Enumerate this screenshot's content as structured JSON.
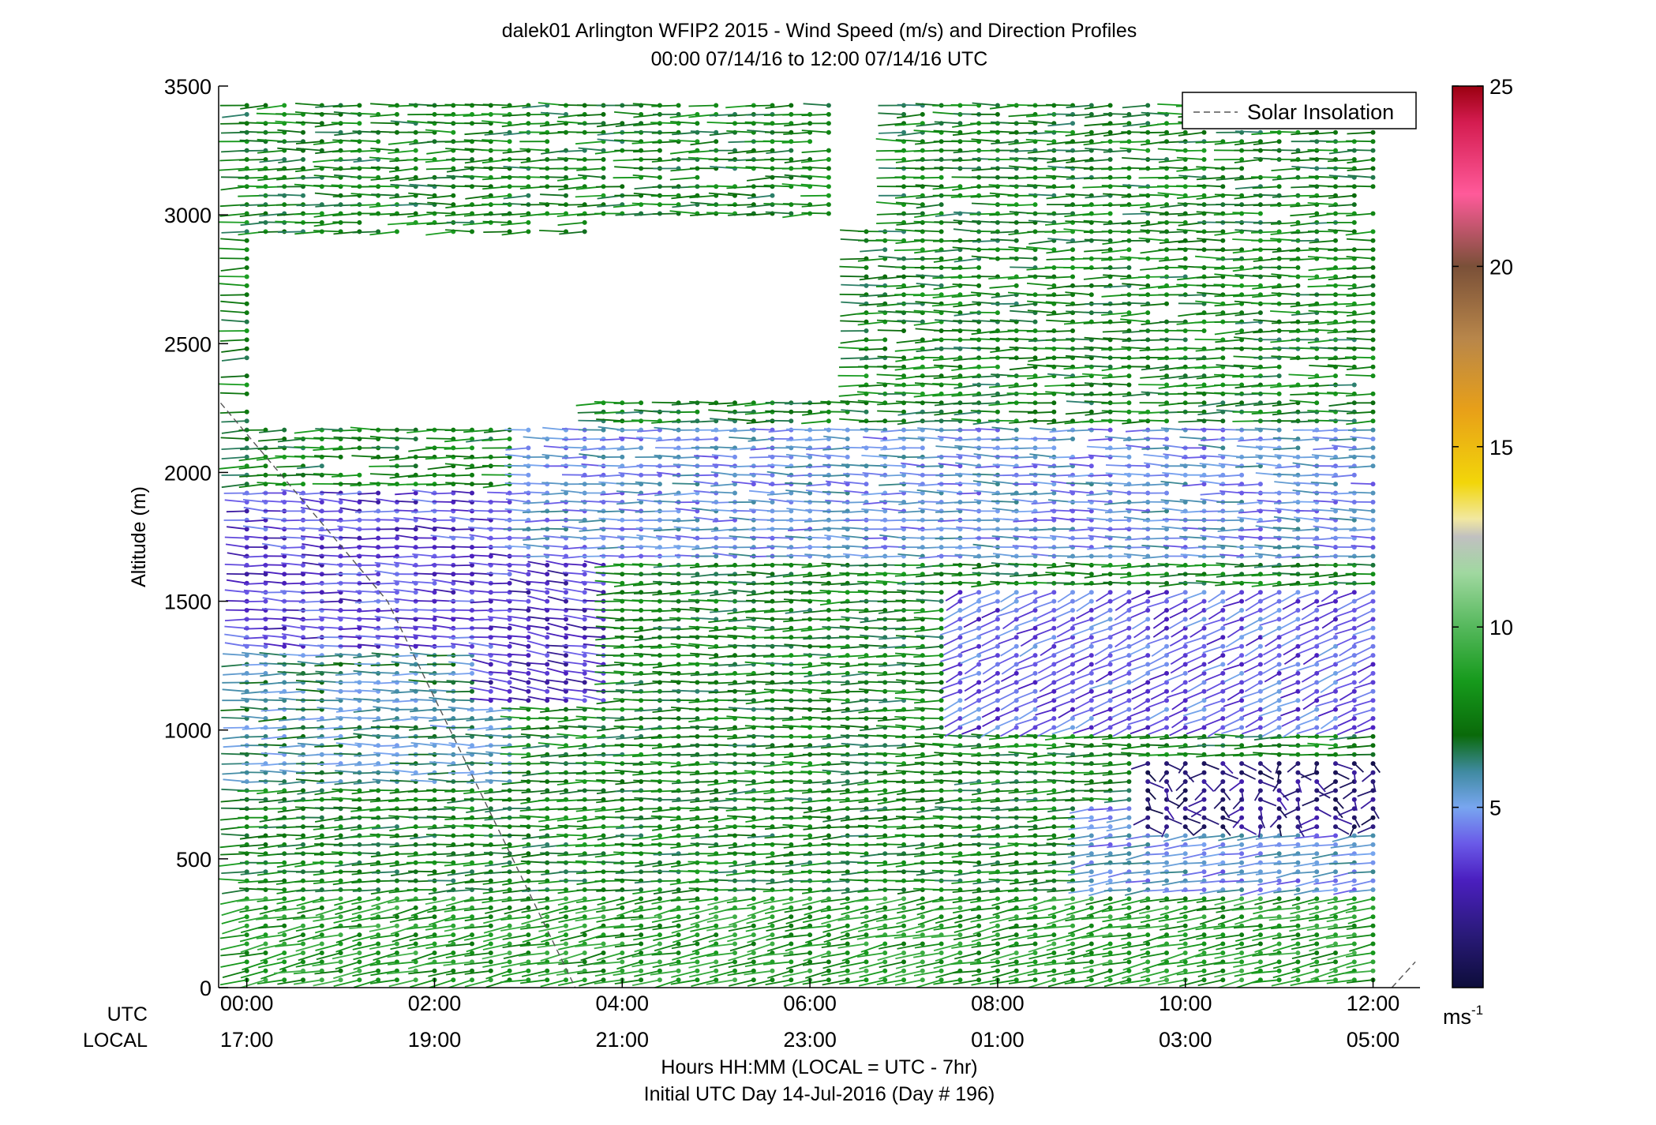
{
  "chart_data": {
    "type": "wind-profile",
    "title": "dalek01 Arlington WFIP2 2015 - Wind Speed (m/s) and Direction Profiles",
    "subtitle": "00:00 07/14/16 to 12:00 07/14/16  UTC",
    "ylabel": "Altitude (m)",
    "xlabel_line1": "Hours HH:MM  (LOCAL = UTC - 7hr)",
    "xlabel_line2": "Initial UTC Day 14-Jul-2016 (Day # 196)",
    "ylim": [
      0,
      3500
    ],
    "xlim_hours": [
      -0.3,
      12.5
    ],
    "y_ticks": [
      "0",
      "500",
      "1000",
      "1500",
      "2000",
      "2500",
      "3000",
      "3500"
    ],
    "x_row_labels": {
      "utc": "UTC",
      "local": "LOCAL"
    },
    "utc_ticks": [
      "00:00",
      "02:00",
      "04:00",
      "06:00",
      "08:00",
      "10:00",
      "12:00"
    ],
    "local_ticks": [
      "17:00",
      "19:00",
      "21:00",
      "23:00",
      "01:00",
      "03:00",
      "05:00"
    ],
    "legend": [
      {
        "label": "Solar Insolation",
        "style": "dashed"
      }
    ],
    "colorbar": {
      "range": [
        0,
        25
      ],
      "ticks": [
        "5",
        "10",
        "15",
        "20",
        "25"
      ],
      "unit": "ms",
      "unit_exp": "-1",
      "stops": [
        {
          "v": 0,
          "c": "#0d0d3a"
        },
        {
          "v": 1.5,
          "c": "#2a1a7a"
        },
        {
          "v": 3,
          "c": "#4b1fc0"
        },
        {
          "v": 4,
          "c": "#6a5ae8"
        },
        {
          "v": 5,
          "c": "#78a6f0"
        },
        {
          "v": 6,
          "c": "#3f8aa0"
        },
        {
          "v": 7,
          "c": "#0a6a0a"
        },
        {
          "v": 8.5,
          "c": "#169a1c"
        },
        {
          "v": 10,
          "c": "#55b85c"
        },
        {
          "v": 11.5,
          "c": "#a0d8a0"
        },
        {
          "v": 12.5,
          "c": "#c0c0c0"
        },
        {
          "v": 13,
          "c": "#f2e8a0"
        },
        {
          "v": 14,
          "c": "#f2d60a"
        },
        {
          "v": 16,
          "c": "#e8a018"
        },
        {
          "v": 18,
          "c": "#b8864a"
        },
        {
          "v": 20,
          "c": "#7a5038"
        },
        {
          "v": 22,
          "c": "#ff5a9a"
        },
        {
          "v": 24,
          "c": "#d41c50"
        },
        {
          "v": 25,
          "c": "#9a0010"
        }
      ]
    },
    "solar_insolation_curve": [
      [
        -0.35,
        2300
      ],
      [
        1.5,
        1500
      ],
      [
        3.5,
        0
      ]
    ],
    "solar_insolation_curve_2": [
      [
        12.2,
        0
      ],
      [
        12.45,
        100
      ]
    ],
    "profiles": {
      "t_start": 0,
      "t_end": 12,
      "t_step": 0.2,
      "z_start": 30,
      "z_step": 35,
      "z_end": 3450,
      "note": "Representative wind regimes (speed m/s, direction deg) by altitude band and time window; station samples every 12 minutes.",
      "regimes": [
        {
          "z": [
            0,
            350
          ],
          "t": [
            0,
            12
          ],
          "speed": 8.5,
          "dir": 250
        },
        {
          "z": [
            350,
            800
          ],
          "t": [
            0,
            9
          ],
          "speed": 7.5,
          "dir": 265
        },
        {
          "z": [
            350,
            700
          ],
          "t": [
            9,
            12
          ],
          "speed": 5,
          "dir": 255
        },
        {
          "z": [
            600,
            870
          ],
          "t": [
            9.5,
            12
          ],
          "speed": 1.5,
          "dir": 180
        },
        {
          "z": [
            800,
            1300
          ],
          "t": [
            0,
            3
          ],
          "speed": 6,
          "dir": 270
        },
        {
          "z": [
            1100,
            1650
          ],
          "t": [
            2.5,
            4
          ],
          "speed": 3,
          "dir": 285
        },
        {
          "z": [
            1000,
            1550
          ],
          "t": [
            7.5,
            12
          ],
          "speed": 4,
          "dir": 230
        },
        {
          "z": [
            1300,
            1950
          ],
          "t": [
            0,
            3
          ],
          "speed": 3.5,
          "dir": 275
        },
        {
          "z": [
            1650,
            2200
          ],
          "t": [
            3,
            12
          ],
          "speed": 5,
          "dir": 272
        },
        {
          "z": [
            2200,
            3450
          ],
          "t": [
            0,
            12
          ],
          "speed": 7.5,
          "dir": 268
        }
      ],
      "gaps": [
        {
          "z": [
            2200,
            2900
          ],
          "t": [
            0.2,
            3.8
          ]
        },
        {
          "z": [
            2300,
            3000
          ],
          "t": [
            3.8,
            6.5
          ]
        },
        {
          "z": [
            2950,
            3450
          ],
          "t": [
            6.4,
            6.9
          ]
        }
      ]
    }
  }
}
